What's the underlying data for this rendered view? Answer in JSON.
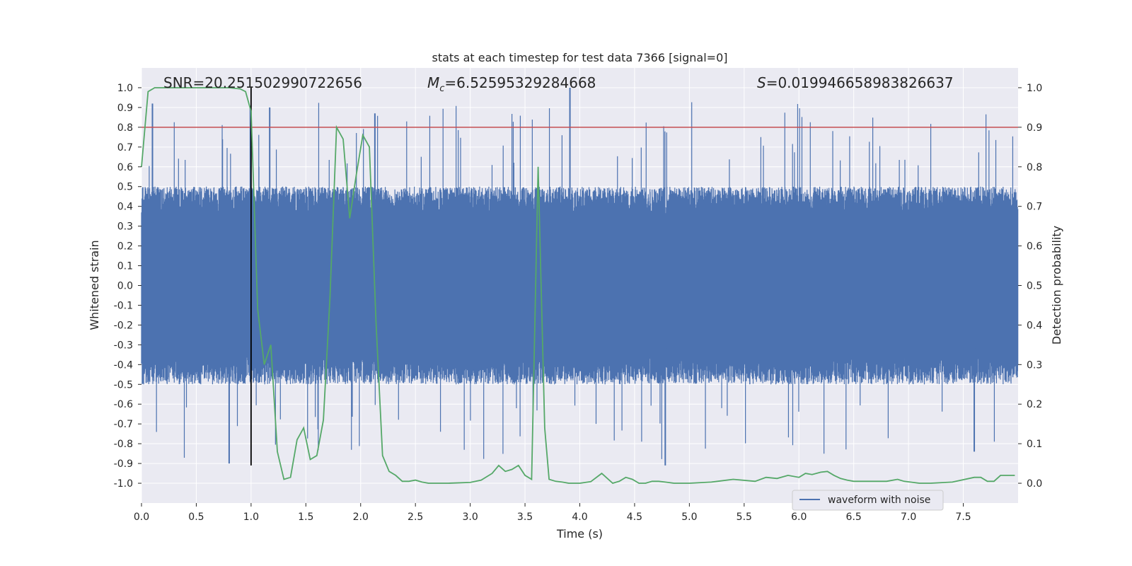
{
  "chart_data": {
    "type": "line",
    "title": "stats at each timestep for test data 7366 [signal=0]",
    "xlabel": "Time (s)",
    "ylabel_left": "Whitened strain",
    "ylabel_right": "Detection probability",
    "xlim": [
      0.0,
      8.0
    ],
    "ylim_left": [
      -1.1,
      1.1
    ],
    "ylim_right": [
      -0.05,
      1.05
    ],
    "x_ticks": [
      "0.0",
      "0.5",
      "1.0",
      "1.5",
      "2.0",
      "2.5",
      "3.0",
      "3.5",
      "4.0",
      "4.5",
      "5.0",
      "5.5",
      "6.0",
      "6.5",
      "7.0",
      "7.5"
    ],
    "y_left_ticks": [
      "1.0",
      "0.9",
      "0.8",
      "0.7",
      "0.6",
      "0.5",
      "0.4",
      "0.3",
      "0.2",
      "0.1",
      "0.0",
      "-0.1",
      "-0.2",
      "-0.3",
      "-0.4",
      "-0.5",
      "-0.6",
      "-0.7",
      "-0.8",
      "-0.9",
      "-1.0"
    ],
    "y_right_ticks": [
      "1.0",
      "0.9",
      "0.8",
      "0.7",
      "0.6",
      "0.5",
      "0.4",
      "0.3",
      "0.2",
      "0.1",
      "0.0"
    ],
    "annotations": {
      "snr": "SNR=20.251502990722656",
      "mc_symbol": "M",
      "mc_sub": "c",
      "mc_value": "=6.52595329284668",
      "s_symbol": "S",
      "s_value": "=0.019946658983826637"
    },
    "legend": {
      "label": "waveform with noise",
      "location": "lower-right"
    },
    "threshold_probability": 0.9,
    "marker_time": 1.0,
    "waveform": {
      "name": "waveform with noise",
      "color": "#4c72b0",
      "n_samples": 4096,
      "core_abs": 0.32,
      "typical_peak": 0.5,
      "max_peak": 1.0,
      "min_trough": -0.91
    },
    "probability_series": {
      "name": "detection probability",
      "color": "#55a868",
      "t": [
        0.0,
        0.06,
        0.12,
        0.2,
        0.3,
        0.4,
        0.5,
        0.6,
        0.7,
        0.8,
        0.9,
        0.95,
        1.0,
        1.06,
        1.12,
        1.18,
        1.24,
        1.3,
        1.36,
        1.42,
        1.48,
        1.54,
        1.6,
        1.66,
        1.72,
        1.78,
        1.84,
        1.9,
        1.96,
        2.02,
        2.08,
        2.14,
        2.2,
        2.26,
        2.32,
        2.38,
        2.44,
        2.5,
        2.56,
        2.62,
        2.7,
        2.8,
        3.0,
        3.1,
        3.2,
        3.26,
        3.32,
        3.38,
        3.44,
        3.5,
        3.56,
        3.62,
        3.68,
        3.72,
        3.78,
        3.84,
        3.9,
        4.0,
        4.1,
        4.2,
        4.3,
        4.36,
        4.42,
        4.48,
        4.54,
        4.6,
        4.66,
        4.72,
        4.78,
        4.86,
        4.94,
        5.0,
        5.2,
        5.4,
        5.6,
        5.7,
        5.8,
        5.9,
        6.0,
        6.06,
        6.12,
        6.2,
        6.26,
        6.32,
        6.38,
        6.44,
        6.5,
        6.6,
        6.8,
        6.9,
        6.96,
        7.1,
        7.2,
        7.4,
        7.6,
        7.66,
        7.72,
        7.78,
        7.84,
        7.9,
        7.97
      ],
      "p": [
        0.8,
        0.99,
        1.0,
        1.0,
        1.0,
        1.0,
        1.0,
        1.0,
        1.0,
        1.0,
        0.997,
        0.99,
        0.94,
        0.44,
        0.3,
        0.35,
        0.08,
        0.01,
        0.015,
        0.11,
        0.14,
        0.06,
        0.07,
        0.16,
        0.47,
        0.9,
        0.87,
        0.67,
        0.78,
        0.88,
        0.85,
        0.41,
        0.07,
        0.03,
        0.02,
        0.005,
        0.005,
        0.008,
        0.003,
        0.0,
        0.0,
        0.0,
        0.002,
        0.008,
        0.025,
        0.045,
        0.03,
        0.035,
        0.045,
        0.02,
        0.01,
        0.8,
        0.14,
        0.01,
        0.005,
        0.003,
        0.0,
        0.0,
        0.004,
        0.025,
        0.0,
        0.005,
        0.015,
        0.01,
        0.0,
        0.0,
        0.005,
        0.005,
        0.003,
        0.0,
        0.0,
        0.0,
        0.003,
        0.01,
        0.005,
        0.015,
        0.012,
        0.02,
        0.015,
        0.025,
        0.022,
        0.028,
        0.03,
        0.02,
        0.012,
        0.008,
        0.005,
        0.005,
        0.005,
        0.01,
        0.005,
        0.0,
        0.0,
        0.003,
        0.015,
        0.015,
        0.005,
        0.005,
        0.02,
        0.02,
        0.02
      ]
    },
    "colors": {
      "plot_bg": "#eaeaf2",
      "grid": "#ffffff",
      "threshold_line": "#c44e52",
      "marker_line": "#000000"
    }
  }
}
